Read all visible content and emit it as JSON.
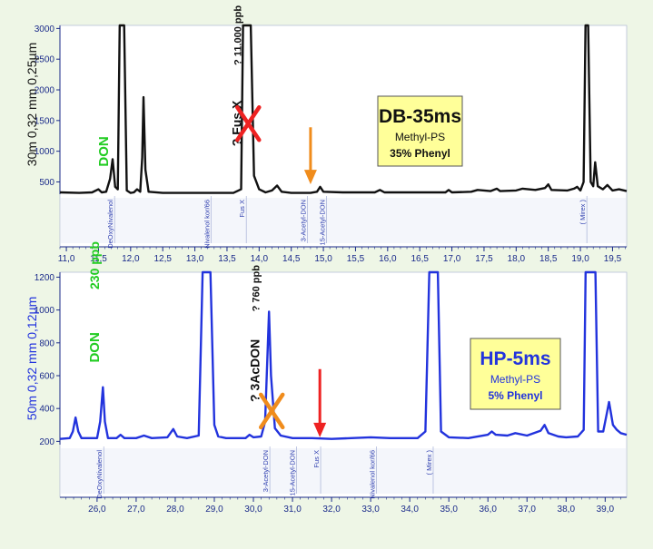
{
  "chart_data": [
    {
      "type": "line",
      "ylabel": "30m 0,32 mm 0,25µm",
      "x_ticks": [
        "11,0",
        "11,5",
        "12,0",
        "12,5",
        "13,0",
        "13,5",
        "14,0",
        "14,5",
        "15,0",
        "15,5",
        "16,0",
        "16,5",
        "17,0",
        "17,5",
        "18,0",
        "18,5",
        "19,0",
        "19,5"
      ],
      "y_ticks": [
        "500",
        "1000",
        "1500",
        "2000",
        "2500",
        "3000"
      ],
      "xlim": [
        10.9,
        19.72
      ],
      "ylim": [
        300,
        3050
      ],
      "trace_color": "#111111",
      "trace": [
        [
          10.9,
          330
        ],
        [
          11.2,
          320
        ],
        [
          11.4,
          330
        ],
        [
          11.5,
          380
        ],
        [
          11.55,
          330
        ],
        [
          11.62,
          340
        ],
        [
          11.68,
          550
        ],
        [
          11.72,
          870
        ],
        [
          11.76,
          420
        ],
        [
          11.8,
          380
        ],
        [
          11.83,
          3050
        ],
        [
          11.9,
          3050
        ],
        [
          11.94,
          360
        ],
        [
          12.0,
          320
        ],
        [
          12.05,
          330
        ],
        [
          12.1,
          380
        ],
        [
          12.15,
          340
        ],
        [
          12.18,
          900
        ],
        [
          12.2,
          1880
        ],
        [
          12.23,
          700
        ],
        [
          12.28,
          340
        ],
        [
          12.5,
          320
        ],
        [
          13.0,
          320
        ],
        [
          13.3,
          320
        ],
        [
          13.6,
          320
        ],
        [
          13.72,
          380
        ],
        [
          13.75,
          3050
        ],
        [
          13.87,
          3050
        ],
        [
          13.92,
          600
        ],
        [
          14.0,
          380
        ],
        [
          14.1,
          330
        ],
        [
          14.2,
          360
        ],
        [
          14.28,
          440
        ],
        [
          14.35,
          340
        ],
        [
          14.5,
          320
        ],
        [
          14.8,
          320
        ],
        [
          14.9,
          340
        ],
        [
          14.95,
          420
        ],
        [
          15.0,
          340
        ],
        [
          15.3,
          330
        ],
        [
          15.8,
          330
        ],
        [
          15.88,
          370
        ],
        [
          15.95,
          330
        ],
        [
          16.5,
          330
        ],
        [
          16.9,
          330
        ],
        [
          16.95,
          370
        ],
        [
          17.0,
          330
        ],
        [
          17.3,
          340
        ],
        [
          17.4,
          370
        ],
        [
          17.6,
          350
        ],
        [
          17.7,
          390
        ],
        [
          17.75,
          350
        ],
        [
          18.0,
          360
        ],
        [
          18.1,
          390
        ],
        [
          18.3,
          370
        ],
        [
          18.45,
          400
        ],
        [
          18.5,
          460
        ],
        [
          18.55,
          370
        ],
        [
          18.8,
          360
        ],
        [
          18.9,
          390
        ],
        [
          18.95,
          420
        ],
        [
          19.0,
          360
        ],
        [
          19.05,
          500
        ],
        [
          19.08,
          3050
        ],
        [
          19.12,
          3050
        ],
        [
          19.16,
          500
        ],
        [
          19.2,
          430
        ],
        [
          19.23,
          820
        ],
        [
          19.27,
          430
        ],
        [
          19.35,
          380
        ],
        [
          19.42,
          450
        ],
        [
          19.5,
          360
        ],
        [
          19.6,
          380
        ],
        [
          19.72,
          350
        ]
      ],
      "peak_labels": [
        {
          "x": 11.75,
          "text": "DeOxyNivalenol"
        },
        {
          "x": 13.25,
          "text": "Nivalenol kor/66"
        },
        {
          "x": 13.8,
          "text": "Fus X"
        },
        {
          "x": 14.75,
          "text": "3-Acetyl-DON"
        },
        {
          "x": 15.05,
          "text": "15-Acetyl-DON"
        },
        {
          "x": 19.1,
          "text": "( Mirex )"
        }
      ],
      "annotations": [
        {
          "text": "DON",
          "x": 11.65,
          "y": 750,
          "color": "#22cc22"
        },
        {
          "text": "? Fus X",
          "x": 13.72,
          "y": 1080,
          "color": "#111111"
        },
        {
          "text": "? 11.000 ppb",
          "x": 13.72,
          "y": 2400,
          "color": "#111111"
        }
      ],
      "marker_x": {
        "x": 13.83,
        "y": 1450,
        "color": "#ee2222"
      },
      "arrow": {
        "x": 14.8,
        "y_from": 1390,
        "y_to": 460,
        "color": "#f08c1c"
      },
      "legend": {
        "title": "DB-35ms",
        "line1": "Methyl-PS",
        "line2": "35% Phenyl",
        "bg": "#ffff99"
      }
    },
    {
      "type": "line",
      "ylabel": "50m 0,32 mm 0,12µm",
      "x_ticks": [
        "26,0",
        "27,0",
        "28,0",
        "29,0",
        "30,0",
        "31,0",
        "32,0",
        "33,0",
        "34,0",
        "35,0",
        "36,0",
        "37,0",
        "38,0",
        "39,0"
      ],
      "y_ticks": [
        "200",
        "400",
        "600",
        "800",
        "1000",
        "1200"
      ],
      "xlim": [
        25.05,
        39.55
      ],
      "ylim": [
        180,
        1230
      ],
      "trace_color": "#2233dd",
      "trace": [
        [
          25.05,
          215
        ],
        [
          25.3,
          220
        ],
        [
          25.38,
          260
        ],
        [
          25.45,
          345
        ],
        [
          25.52,
          260
        ],
        [
          25.6,
          220
        ],
        [
          26.0,
          220
        ],
        [
          26.08,
          320
        ],
        [
          26.15,
          530
        ],
        [
          26.2,
          320
        ],
        [
          26.28,
          220
        ],
        [
          26.5,
          220
        ],
        [
          26.6,
          240
        ],
        [
          26.7,
          220
        ],
        [
          27.0,
          220
        ],
        [
          27.2,
          235
        ],
        [
          27.4,
          220
        ],
        [
          27.8,
          225
        ],
        [
          27.95,
          275
        ],
        [
          28.05,
          230
        ],
        [
          28.3,
          220
        ],
        [
          28.6,
          235
        ],
        [
          28.7,
          1230
        ],
        [
          28.9,
          1230
        ],
        [
          29.0,
          300
        ],
        [
          29.1,
          230
        ],
        [
          29.3,
          220
        ],
        [
          29.8,
          220
        ],
        [
          29.9,
          240
        ],
        [
          30.0,
          225
        ],
        [
          30.2,
          230
        ],
        [
          30.3,
          320
        ],
        [
          30.4,
          990
        ],
        [
          30.45,
          600
        ],
        [
          30.55,
          280
        ],
        [
          30.7,
          235
        ],
        [
          31.0,
          220
        ],
        [
          31.5,
          220
        ],
        [
          32.0,
          215
        ],
        [
          32.5,
          220
        ],
        [
          33.0,
          225
        ],
        [
          33.5,
          220
        ],
        [
          34.2,
          220
        ],
        [
          34.4,
          260
        ],
        [
          34.5,
          1230
        ],
        [
          34.72,
          1230
        ],
        [
          34.8,
          260
        ],
        [
          35.0,
          225
        ],
        [
          35.5,
          220
        ],
        [
          36.0,
          240
        ],
        [
          36.1,
          260
        ],
        [
          36.2,
          240
        ],
        [
          36.5,
          235
        ],
        [
          36.7,
          250
        ],
        [
          37.0,
          235
        ],
        [
          37.35,
          265
        ],
        [
          37.45,
          300
        ],
        [
          37.55,
          250
        ],
        [
          37.8,
          230
        ],
        [
          38.0,
          225
        ],
        [
          38.3,
          230
        ],
        [
          38.45,
          270
        ],
        [
          38.5,
          1230
        ],
        [
          38.75,
          1230
        ],
        [
          38.82,
          260
        ],
        [
          38.95,
          260
        ],
        [
          39.05,
          380
        ],
        [
          39.1,
          440
        ],
        [
          39.2,
          300
        ],
        [
          39.3,
          270
        ],
        [
          39.4,
          250
        ],
        [
          39.55,
          240
        ]
      ],
      "peak_labels": [
        {
          "x": 26.17,
          "text": "DeOxyNivalenol"
        },
        {
          "x": 30.42,
          "text": "3-Acetyl-DON"
        },
        {
          "x": 31.1,
          "text": "15-Acetyl-DON"
        },
        {
          "x": 31.72,
          "text": "Fus X"
        },
        {
          "x": 33.15,
          "text": "Nivalenol kor/66"
        },
        {
          "x": 34.6,
          "text": "( Mirex )"
        }
      ],
      "annotations": [
        {
          "text": "DON",
          "x": 26.05,
          "y": 680,
          "color": "#22cc22"
        },
        {
          "text": "230 ppb",
          "x": 26.05,
          "y": 1125,
          "color": "#22cc22"
        },
        {
          "text": "? 3AcDON",
          "x": 30.15,
          "y": 440,
          "color": "#111111"
        },
        {
          "text": "? 760 ppb",
          "x": 30.15,
          "y": 990,
          "color": "#111111"
        }
      ],
      "marker_x": {
        "x": 30.47,
        "y": 385,
        "color": "#f08c1c"
      },
      "arrow": {
        "x": 31.7,
        "y_from": 640,
        "y_to": 225,
        "color": "#ee2222"
      },
      "legend": {
        "title": "HP-5ms",
        "line1": "Methyl-PS",
        "line2": "5% Phenyl",
        "bg": "#ffff99"
      }
    }
  ]
}
